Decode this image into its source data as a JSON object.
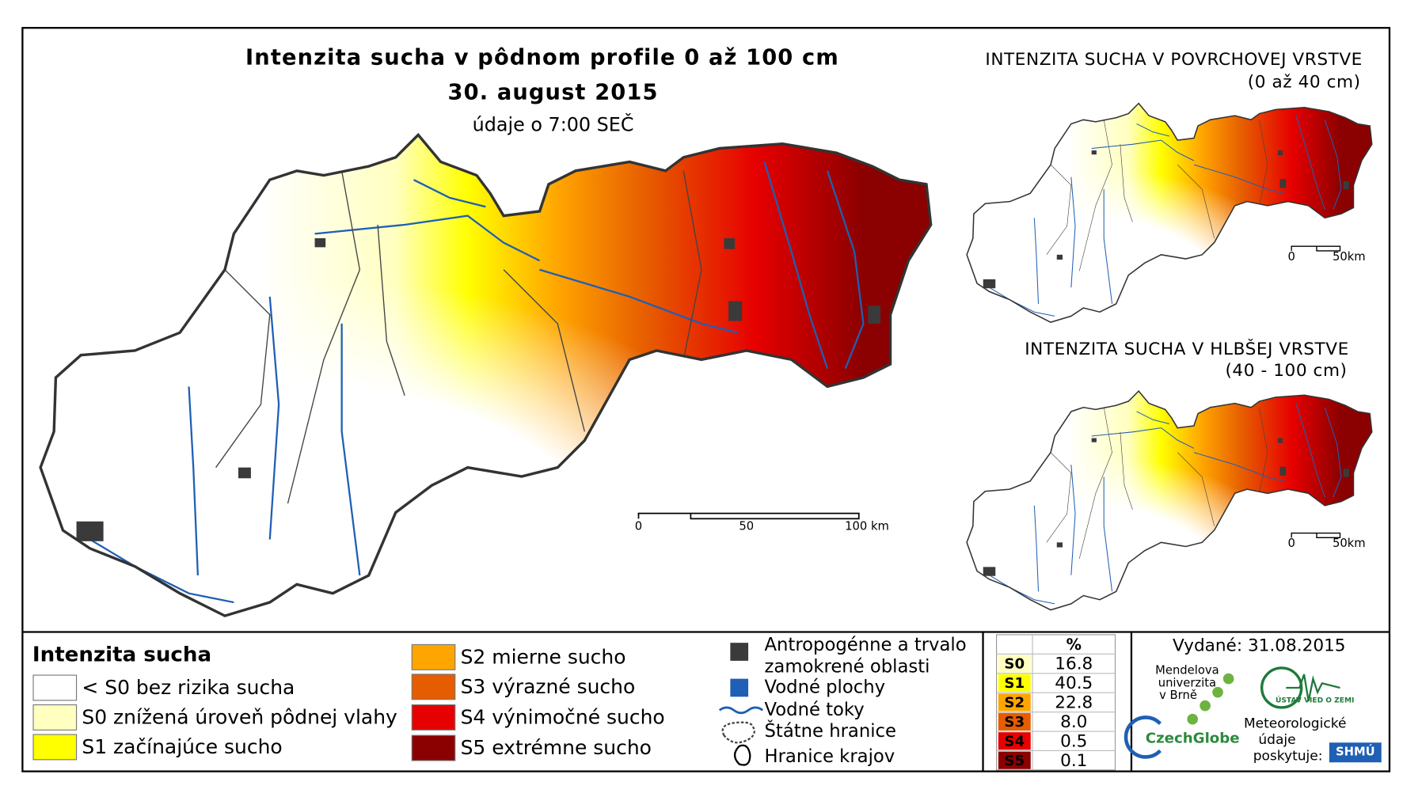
{
  "main_map": {
    "title": "Intenzita sucha v pôdnom profile 0 až 100 cm",
    "date": "30. august 2015",
    "note": "údaje o 7:00 SEČ",
    "scale": [
      "0",
      "50",
      "100 km"
    ]
  },
  "inset_maps": [
    {
      "title": "INTENZITA SUCHA V POVRCHOVEJ VRSTVE",
      "subtitle": "(0 až 40 cm)",
      "scale": [
        "0",
        "50km"
      ]
    },
    {
      "title": "INTENZITA SUCHA V HLBŠEJ VRSTVE",
      "subtitle": "(40 - 100 cm)",
      "scale": [
        "0",
        "50km"
      ]
    }
  ],
  "legend": {
    "title": "Intenzita sucha",
    "classes": [
      {
        "label": "< S0 bez rizika sucha",
        "color": "#ffffff"
      },
      {
        "label": "S0 znížená úroveň pôdnej vlahy",
        "color": "#ffffc0"
      },
      {
        "label": "S1 začínajúce sucho",
        "color": "#ffff00"
      },
      {
        "label": "S2 mierne sucho",
        "color": "#ffa500"
      },
      {
        "label": "S3 výrazné sucho",
        "color": "#e65c00"
      },
      {
        "label": "S4 výnimočné sucho",
        "color": "#e60000"
      },
      {
        "label": "S5 extrémne sucho",
        "color": "#8b0000"
      }
    ]
  },
  "other_legend": [
    {
      "lines": [
        "Antropogénne a trvalo",
        "zamokrené oblasti"
      ]
    },
    {
      "lines": [
        "Vodné plochy"
      ]
    },
    {
      "lines": [
        "Vodné toky"
      ]
    },
    {
      "lines": [
        "Štátne hranice"
      ]
    },
    {
      "lines": [
        "Hranice krajov"
      ]
    }
  ],
  "table": {
    "header": "%",
    "rows": [
      [
        "S0",
        "16.8"
      ],
      [
        "S1",
        "40.5"
      ],
      [
        "S2",
        "22.8"
      ],
      [
        "S3",
        "8.0"
      ],
      [
        "S4",
        "0.5"
      ],
      [
        "S5",
        "0.1"
      ]
    ]
  },
  "issued": "Vydané: 31.08.2015",
  "logos": {
    "mendel": [
      "Mendelova",
      "univerzita",
      "v Brně"
    ],
    "czechglobe": "CzechGlobe",
    "uvz": "ÚSTAV VIED O ZEMI",
    "shmu_note": [
      "Meteorologické",
      "údaje",
      "poskytuje:"
    ],
    "shmu": "SHMÚ"
  }
}
